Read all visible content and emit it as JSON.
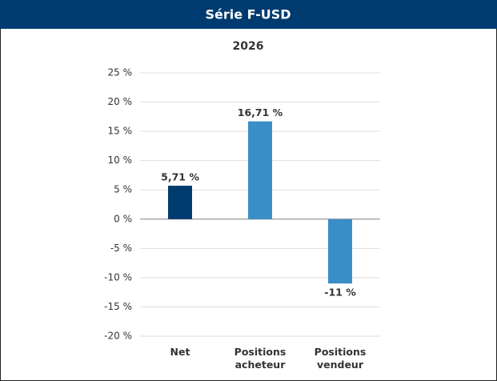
{
  "chart_data": {
    "type": "bar",
    "title": "Série F-USD",
    "subtitle": "2026",
    "categories": [
      "Net",
      "Positions acheteur",
      "Positions vendeur"
    ],
    "values": [
      5.71,
      16.71,
      -11
    ],
    "value_labels": [
      "5,71 %",
      "16,71 %",
      "-11 %"
    ],
    "colors": [
      "#003b6f",
      "#3a8ec8",
      "#3a8ec8"
    ],
    "ylim": [
      -20,
      25
    ],
    "yticks": [
      {
        "value": -20,
        "label": "-20 %"
      },
      {
        "value": -15,
        "label": "-15 %"
      },
      {
        "value": -10,
        "label": "-10 %"
      },
      {
        "value": -5,
        "label": "-5 %"
      },
      {
        "value": 0,
        "label": "0 %"
      },
      {
        "value": 5,
        "label": "5 %"
      },
      {
        "value": 10,
        "label": "10 %"
      },
      {
        "value": 15,
        "label": "15 %"
      },
      {
        "value": 20,
        "label": "20 %"
      },
      {
        "value": 25,
        "label": "25 %"
      }
    ],
    "grid": true
  }
}
